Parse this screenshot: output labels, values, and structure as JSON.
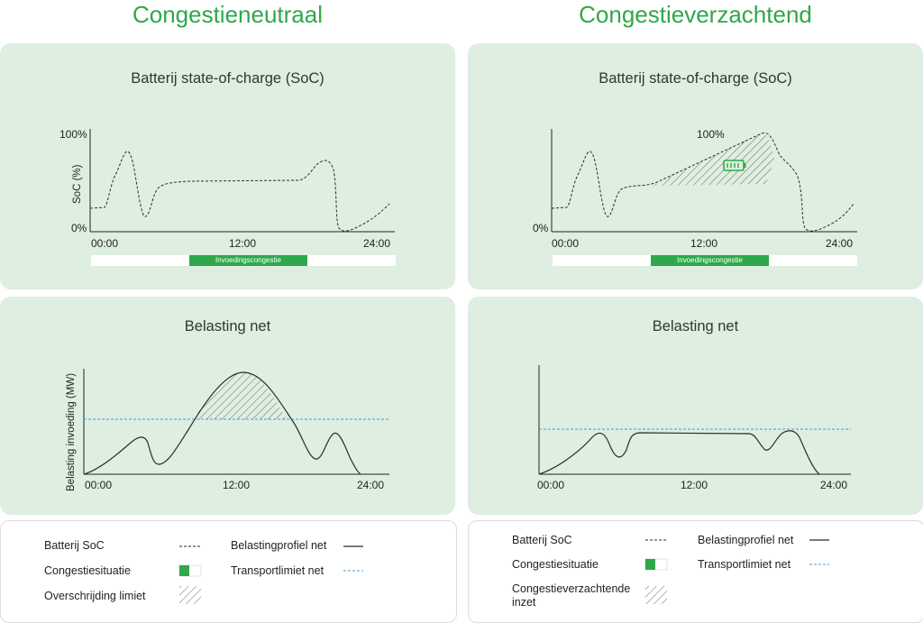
{
  "headings": {
    "left": "Congestieneutraal",
    "right": "Congestieverzachtend"
  },
  "colors": {
    "accent": "#2ea84a",
    "panel_bg": "#deeee0",
    "limit_line": "#4a9ad4",
    "curve": "#2b2b2b"
  },
  "soc_panel": {
    "title": "Batterij state-of-charge (SoC)",
    "y_top": "100%",
    "y_bottom": "0%",
    "y_axis_label": "SoC (%)",
    "x_ticks": [
      "00:00",
      "12:00",
      "24:00"
    ],
    "congestion_label": "Invoedingscongestie",
    "peak_label": "100%",
    "battery_icon": "battery-icon"
  },
  "grid_panel": {
    "title": "Belasting net",
    "y_axis_label": "Belasting invoeding (MW)",
    "x_ticks": [
      "00:00",
      "12:00",
      "24:00"
    ]
  },
  "legend_left": {
    "soc": "Batterij SoC",
    "congestion": "Congestiesituatie",
    "exceed": "Overschrijding limiet",
    "profile": "Belastingprofiel net",
    "transport": "Transportlimiet net"
  },
  "legend_right": {
    "soc": "Batterij SoC",
    "congestion": "Congestiesituatie",
    "mitigation": "Congestieverzachtende inzet",
    "profile": "Belastingprofiel net",
    "transport": "Transportlimiet net"
  }
}
